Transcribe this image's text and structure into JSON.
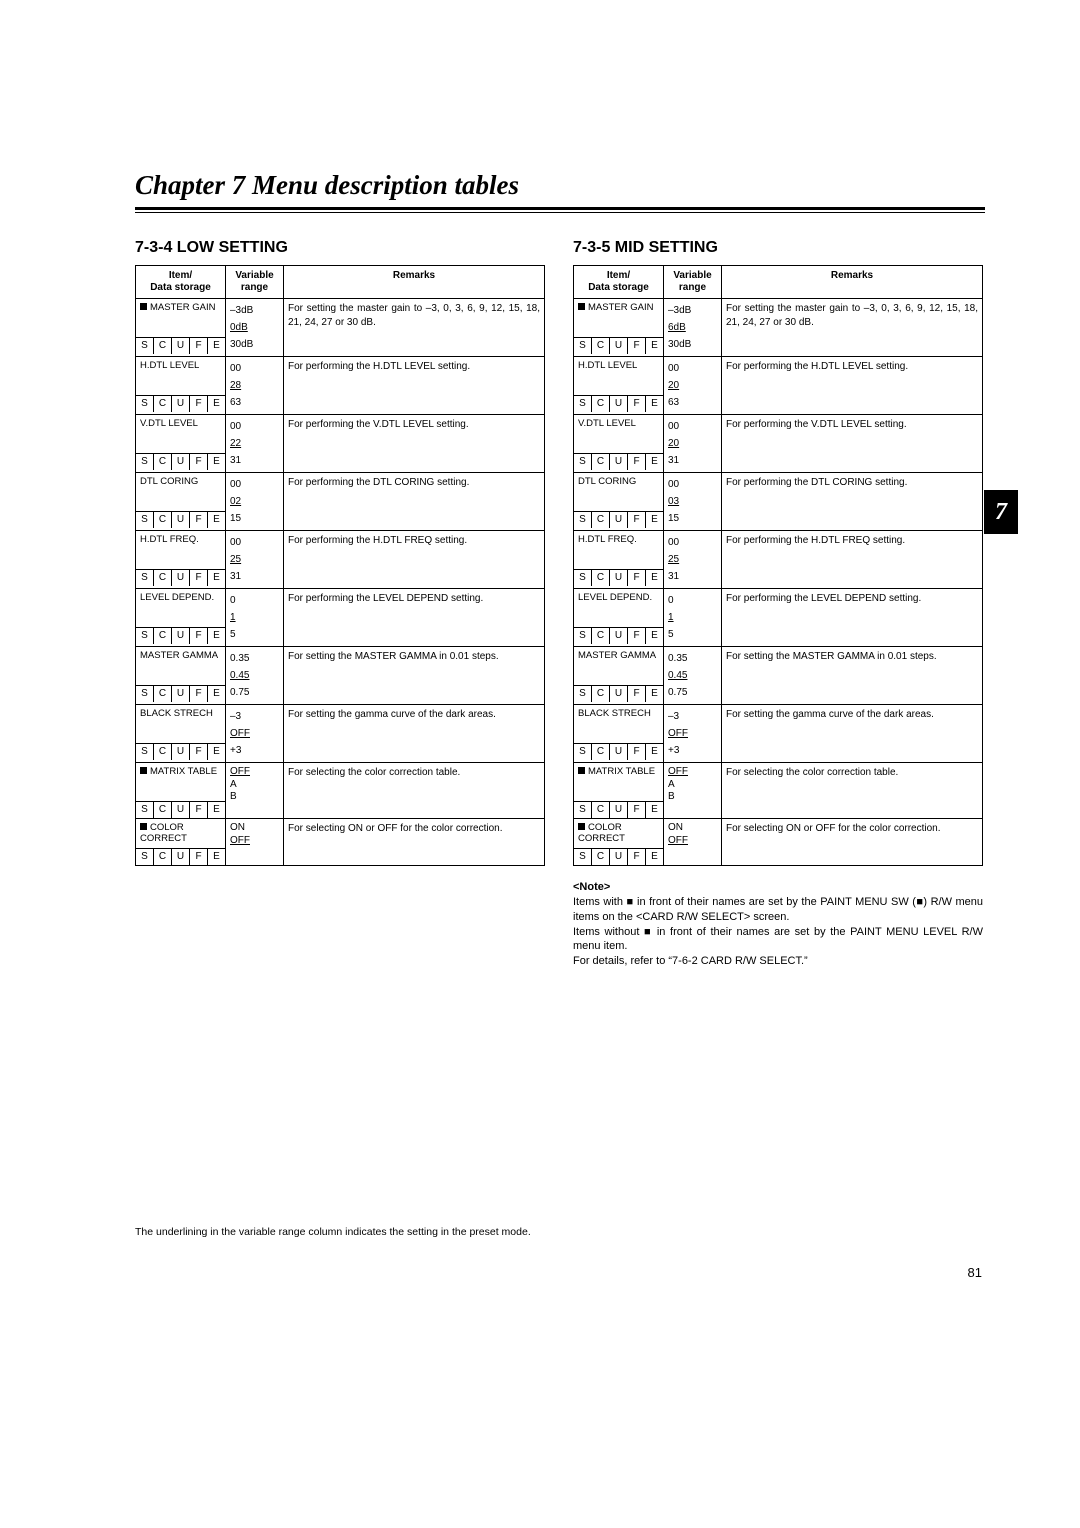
{
  "chapter_title": "Chapter 7  Menu description tables",
  "page_tab": "7",
  "page_number": "81",
  "footnote": "The underlining in the variable range column indicates the setting in the preset mode.",
  "headers": {
    "item": "Item/\nData storage",
    "range": "Variable\nrange",
    "remarks": "Remarks"
  },
  "storage_letters": [
    "S",
    "C",
    "U",
    "F",
    "E"
  ],
  "low": {
    "heading": "7-3-4 LOW SETTING",
    "rows": [
      {
        "sq": true,
        "name": "MASTER GAIN",
        "range": [
          "–3dB",
          "0dB",
          "30dB"
        ],
        "ul_idx": 1,
        "remarks": "For setting the master gain to –3, 0, 3, 6, 9, 12, 15, 18, 21, 24, 27 or 30 dB."
      },
      {
        "sq": false,
        "name": "H.DTL LEVEL",
        "range": [
          "00",
          "28",
          "63"
        ],
        "ul_idx": 1,
        "remarks": "For performing the H.DTL LEVEL setting."
      },
      {
        "sq": false,
        "name": "V.DTL LEVEL",
        "range": [
          "00",
          "22",
          "31"
        ],
        "ul_idx": 1,
        "remarks": "For performing the V.DTL LEVEL setting."
      },
      {
        "sq": false,
        "name": "DTL CORING",
        "range": [
          "00",
          "02",
          "15"
        ],
        "ul_idx": 1,
        "remarks": "For performing the DTL CORING setting."
      },
      {
        "sq": false,
        "name": "H.DTL FREQ.",
        "range": [
          "00",
          "25",
          "31"
        ],
        "ul_idx": 1,
        "remarks": "For performing the H.DTL FREQ setting."
      },
      {
        "sq": false,
        "name": "LEVEL DEPEND.",
        "range": [
          "0",
          "1",
          "5"
        ],
        "ul_idx": 1,
        "remarks": "For performing the LEVEL DEPEND setting."
      },
      {
        "sq": false,
        "name": "MASTER GAMMA",
        "range": [
          "0.35",
          "0.45",
          "0.75"
        ],
        "ul_idx": 1,
        "remarks": "For setting the MASTER GAMMA in 0.01 steps."
      },
      {
        "sq": false,
        "name": "BLACK STRECH",
        "range": [
          "–3",
          "OFF",
          "+3"
        ],
        "ul_idx": 1,
        "remarks": "For setting the gamma curve of the dark areas."
      },
      {
        "sq": true,
        "name": "MATRIX TABLE",
        "range": [
          "OFF",
          "A",
          "B"
        ],
        "ul_idx": 0,
        "remarks": "For selecting the color correction table.",
        "tight": true
      },
      {
        "sq": true,
        "name": "COLOR\nCORRECT",
        "range": [
          "ON",
          "OFF"
        ],
        "ul_idx": 1,
        "remarks": "For selecting ON or OFF for the color correction.",
        "tight": true,
        "short": true
      }
    ]
  },
  "mid": {
    "heading": "7-3-5 MID SETTING",
    "rows": [
      {
        "sq": true,
        "name": "MASTER GAIN",
        "range": [
          "–3dB",
          "6dB",
          "30dB"
        ],
        "ul_idx": 1,
        "remarks": "For setting the master gain to –3, 0, 3, 6, 9, 12, 15, 18, 21, 24, 27 or 30 dB."
      },
      {
        "sq": false,
        "name": "H.DTL LEVEL",
        "range": [
          "00",
          "20",
          "63"
        ],
        "ul_idx": 1,
        "remarks": "For performing the H.DTL LEVEL setting."
      },
      {
        "sq": false,
        "name": "V.DTL LEVEL",
        "range": [
          "00",
          "20",
          "31"
        ],
        "ul_idx": 1,
        "remarks": "For performing the V.DTL LEVEL setting."
      },
      {
        "sq": false,
        "name": "DTL CORING",
        "range": [
          "00",
          "03",
          "15"
        ],
        "ul_idx": 1,
        "remarks": "For performing the DTL CORING setting."
      },
      {
        "sq": false,
        "name": "H.DTL FREQ.",
        "range": [
          "00",
          "25",
          "31"
        ],
        "ul_idx": 1,
        "remarks": "For performing the H.DTL FREQ setting."
      },
      {
        "sq": false,
        "name": "LEVEL DEPEND.",
        "range": [
          "0",
          "1",
          "5"
        ],
        "ul_idx": 1,
        "remarks": "For performing the LEVEL DEPEND setting."
      },
      {
        "sq": false,
        "name": "MASTER GAMMA",
        "range": [
          "0.35",
          "0.45",
          "0.75"
        ],
        "ul_idx": 1,
        "remarks": "For setting the MASTER GAMMA in 0.01 steps."
      },
      {
        "sq": false,
        "name": "BLACK STRECH",
        "range": [
          "–3",
          "OFF",
          "+3"
        ],
        "ul_idx": 1,
        "remarks": "For setting the gamma curve of the dark areas."
      },
      {
        "sq": true,
        "name": "MATRIX TABLE",
        "range": [
          "OFF",
          "A",
          "B"
        ],
        "ul_idx": 0,
        "remarks": "For selecting the color correction table.",
        "tight": true
      },
      {
        "sq": true,
        "name": "COLOR\nCORRECT",
        "range": [
          "ON",
          "OFF"
        ],
        "ul_idx": 1,
        "remarks": "For selecting ON or OFF for the color correction.",
        "tight": true,
        "short": true
      }
    ],
    "note": {
      "heading": "<Note>",
      "lines": [
        "Items with ■ in front of their names are set by the PAINT MENU SW (■) R/W menu items on the <CARD R/W SELECT> screen.",
        "Items without ■ in front of their names are set by the PAINT MENU LEVEL R/W menu item.",
        "For details, refer to “7-6-2 CARD R/W SELECT.”"
      ]
    }
  }
}
